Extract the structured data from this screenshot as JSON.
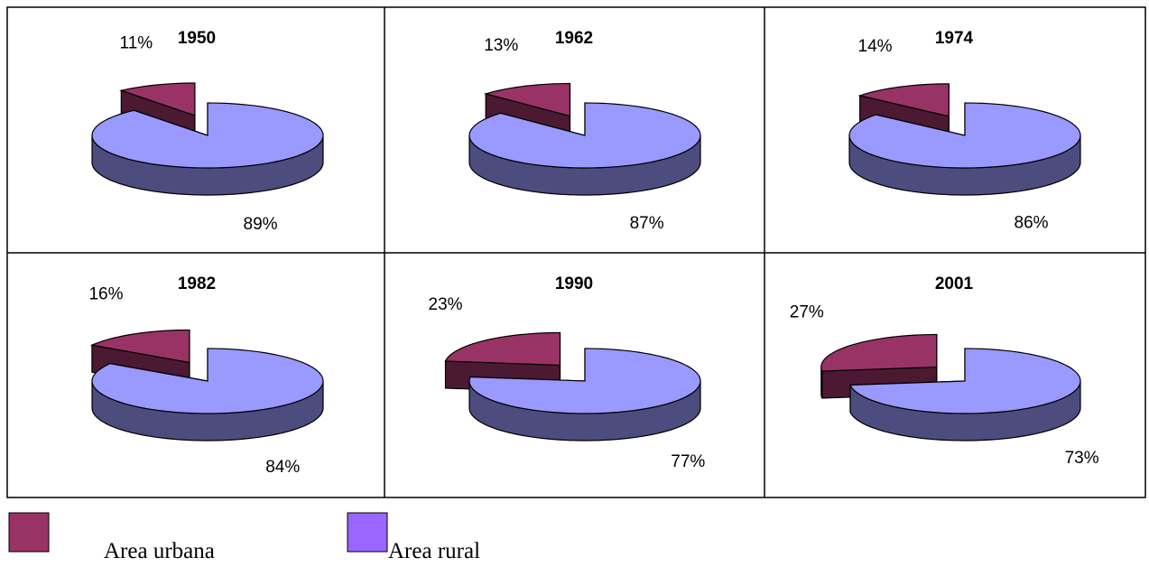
{
  "chart_data": [
    {
      "type": "pie",
      "title": "1950",
      "values": [
        11,
        89
      ],
      "value_labels": [
        "11%",
        "89%"
      ],
      "colors": [
        "#993366",
        "#9999ff"
      ]
    },
    {
      "type": "pie",
      "title": "1962",
      "values": [
        13,
        87
      ],
      "value_labels": [
        "13%",
        "87%"
      ],
      "colors": [
        "#993366",
        "#9999ff"
      ]
    },
    {
      "type": "pie",
      "title": "1974",
      "values": [
        14,
        86
      ],
      "value_labels": [
        "14%",
        "86%"
      ],
      "colors": [
        "#993366",
        "#9999ff"
      ]
    },
    {
      "type": "pie",
      "title": "1982",
      "values": [
        16,
        84
      ],
      "value_labels": [
        "16%",
        "84%"
      ],
      "colors": [
        "#993366",
        "#9999ff"
      ]
    },
    {
      "type": "pie",
      "title": "1990",
      "values": [
        23,
        77
      ],
      "value_labels": [
        "23%",
        "77%"
      ],
      "colors": [
        "#993366",
        "#9999ff"
      ]
    },
    {
      "type": "pie",
      "title": "2001",
      "values": [
        27,
        73
      ],
      "value_labels": [
        "27%",
        "73%"
      ],
      "colors": [
        "#993366",
        "#9999ff"
      ]
    }
  ],
  "legend": [
    {
      "name": "Area urbana",
      "color": "#993366"
    },
    {
      "name": "Area rural",
      "color": "#9966ff"
    }
  ]
}
